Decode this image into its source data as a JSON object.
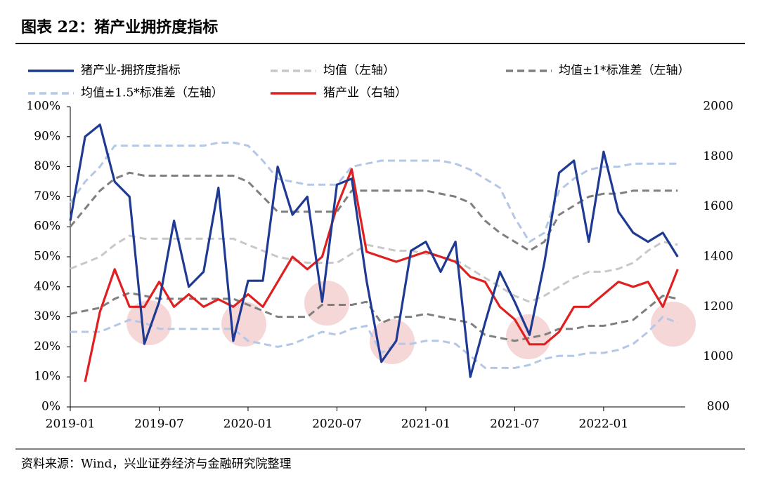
{
  "chart_data": {
    "type": "line",
    "title": "图表 22：猪产业拥挤度指标",
    "source": "资料来源：Wind，兴业证券经济与金融研究院整理",
    "x": [
      "2019-01",
      "2019-02",
      "2019-03",
      "2019-04",
      "2019-05",
      "2019-06",
      "2019-07",
      "2019-08",
      "2019-09",
      "2019-10",
      "2019-11",
      "2019-12",
      "2020-01",
      "2020-02",
      "2020-03",
      "2020-04",
      "2020-05",
      "2020-06",
      "2020-07",
      "2020-08",
      "2020-09",
      "2020-10",
      "2020-11",
      "2020-12",
      "2021-01",
      "2021-02",
      "2021-03",
      "2021-04",
      "2021-05",
      "2021-06",
      "2021-07",
      "2021-08",
      "2021-09",
      "2021-10",
      "2021-11",
      "2021-12",
      "2022-01",
      "2022-02",
      "2022-03",
      "2022-04",
      "2022-05",
      "2022-06"
    ],
    "xticks": [
      "2019-01",
      "2019-07",
      "2020-01",
      "2020-07",
      "2021-01",
      "2021-07",
      "2022-01"
    ],
    "ylim": [
      0,
      100
    ],
    "yticks": [
      {
        "value": 0,
        "label": "0%"
      },
      {
        "value": 10,
        "label": "10%"
      },
      {
        "value": 20,
        "label": "20%"
      },
      {
        "value": 30,
        "label": "30%"
      },
      {
        "value": 40,
        "label": "40%"
      },
      {
        "value": 50,
        "label": "50%"
      },
      {
        "value": 60,
        "label": "60%"
      },
      {
        "value": 70,
        "label": "70%"
      },
      {
        "value": 80,
        "label": "80%"
      },
      {
        "value": 90,
        "label": "90%"
      },
      {
        "value": 100,
        "label": "100%"
      }
    ],
    "y2lim": [
      800,
      2000
    ],
    "y2ticks": [
      800,
      1000,
      1200,
      1400,
      1600,
      1800,
      2000
    ],
    "series": [
      {
        "name": "猪产业-拥挤度指标",
        "color": "#1f3a93",
        "dash": false,
        "values": [
          62,
          90,
          94,
          75,
          70,
          21,
          35,
          62,
          40,
          45,
          73,
          22,
          42,
          42,
          80,
          64,
          70,
          35,
          74,
          76,
          42,
          15,
          22,
          52,
          55,
          45,
          55,
          10,
          28,
          45,
          35,
          24,
          48,
          78,
          82,
          55,
          85,
          65,
          58,
          55,
          58,
          50
        ]
      },
      {
        "name": "均值（左轴）",
        "color": "#c8c8c8",
        "dash": true,
        "values": [
          46,
          48,
          50,
          54,
          57,
          56,
          56,
          56,
          56,
          56,
          56,
          56,
          54,
          52,
          50,
          49,
          48,
          48,
          48,
          51,
          54,
          53,
          52,
          52,
          51,
          50,
          49,
          46,
          43,
          40,
          37,
          35,
          37,
          40,
          43,
          45,
          45,
          46,
          48,
          52,
          55,
          54
        ]
      },
      {
        "name": "均值±1*标准差（左轴）",
        "color": "#7f7f7f",
        "dash": true,
        "values": [
          60,
          66,
          72,
          76,
          78,
          77,
          77,
          77,
          77,
          77,
          77,
          77,
          75,
          70,
          65,
          65,
          65,
          65,
          65,
          72,
          72,
          72,
          72,
          72,
          72,
          71,
          70,
          68,
          62,
          58,
          55,
          52,
          55,
          64,
          67,
          70,
          71,
          71,
          72,
          72,
          72,
          72
        ],
        "lower": [
          31,
          32,
          33,
          36,
          38,
          37,
          36,
          36,
          36,
          36,
          36,
          36,
          34,
          32,
          30,
          30,
          30,
          34,
          34,
          34,
          35,
          28,
          30,
          30,
          31,
          30,
          29,
          28,
          24,
          23,
          22,
          23,
          24,
          26,
          26,
          27,
          27,
          28,
          29,
          33,
          37,
          36
        ]
      },
      {
        "name": "均值±1.5*标准差（左轴）",
        "color": "#b4c7e7",
        "dash": true,
        "values": [
          68,
          75,
          80,
          87,
          87,
          87,
          87,
          87,
          87,
          87,
          88,
          88,
          87,
          82,
          76,
          75,
          74,
          74,
          74,
          80,
          81,
          82,
          82,
          82,
          82,
          82,
          81,
          79,
          76,
          73,
          63,
          55,
          58,
          72,
          76,
          79,
          80,
          80,
          81,
          81,
          81,
          81
        ],
        "lower": [
          25,
          25,
          25,
          27,
          29,
          28,
          26,
          26,
          26,
          26,
          26,
          26,
          22,
          21,
          20,
          21,
          23,
          25,
          24,
          26,
          27,
          18,
          21,
          21,
          22,
          22,
          21,
          17,
          13,
          13,
          13,
          14,
          16,
          17,
          17,
          18,
          18,
          19,
          21,
          25,
          30,
          28
        ]
      },
      {
        "name": "猪产业（右轴）",
        "color": "#e02020",
        "dash": false,
        "axis": "y2",
        "values": [
          null,
          900,
          1180,
          1350,
          1200,
          1200,
          1300,
          1200,
          1250,
          1200,
          1230,
          1200,
          1250,
          1200,
          1300,
          1400,
          1350,
          1400,
          1600,
          1750,
          1420,
          1400,
          1380,
          1400,
          1420,
          1400,
          1380,
          1320,
          1300,
          1200,
          1150,
          1050,
          1050,
          1100,
          1200,
          1200,
          1250,
          1300,
          1280,
          1300,
          1200,
          1350
        ]
      }
    ]
  }
}
